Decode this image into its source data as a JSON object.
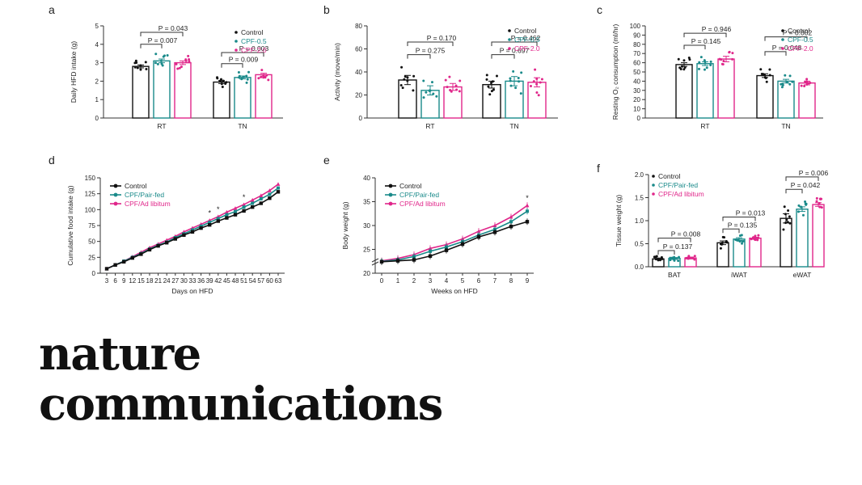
{
  "colors": {
    "control": "#111111",
    "teal": "#1a8a8a",
    "pink": "#e0268a",
    "axis": "#333333"
  },
  "brand": {
    "line1": "nature",
    "line2": "communications"
  },
  "chart_data": [
    {
      "panel": "a",
      "type": "bar",
      "ylabel": "Daily HFD intake (g)",
      "ylim": [
        0,
        5
      ],
      "yticks": [
        "0",
        "1",
        "2",
        "3",
        "4",
        "5"
      ],
      "groups": [
        "RT",
        "TN"
      ],
      "legend": [
        {
          "name": "Control",
          "color": "#111111"
        },
        {
          "name": "CPF-0.5",
          "color": "#1a8a8a"
        },
        {
          "name": "CPF-2.0",
          "color": "#e0268a"
        }
      ],
      "series": [
        {
          "name": "Control",
          "values": [
            2.8,
            1.95
          ],
          "err": [
            0.08,
            0.08
          ]
        },
        {
          "name": "CPF-0.5",
          "values": [
            3.1,
            2.2
          ],
          "err": [
            0.1,
            0.08
          ]
        },
        {
          "name": "CPF-2.0",
          "values": [
            3.0,
            2.35
          ],
          "err": [
            0.1,
            0.08
          ]
        }
      ],
      "annotations": [
        {
          "text": "P = 0.043",
          "group": 0,
          "from": 0,
          "to": 2,
          "y": 4.65
        },
        {
          "text": "P = 0.007",
          "group": 0,
          "from": 0,
          "to": 1,
          "y": 4.0
        },
        {
          "text": "P = 0.003",
          "group": 1,
          "from": 0,
          "to": 2,
          "y": 3.55
        },
        {
          "text": "P = 0.009",
          "group": 1,
          "from": 0,
          "to": 1,
          "y": 2.95
        }
      ]
    },
    {
      "panel": "b",
      "type": "bar",
      "ylabel": "Activity (move/min)",
      "ylim": [
        0,
        80
      ],
      "yticks": [
        "0",
        "20",
        "40",
        "60",
        "80"
      ],
      "groups": [
        "RT",
        "TN"
      ],
      "legend": [
        {
          "name": "Control",
          "color": "#111111"
        },
        {
          "name": "CPF-0.5",
          "color": "#1a8a8a"
        },
        {
          "name": "CPF-2.0",
          "color": "#e0268a"
        }
      ],
      "series": [
        {
          "name": "Control",
          "values": [
            33,
            29
          ],
          "err": [
            4,
            3
          ]
        },
        {
          "name": "CPF-0.5",
          "values": [
            24,
            32
          ],
          "err": [
            4,
            4
          ]
        },
        {
          "name": "CPF-2.0",
          "values": [
            27,
            31
          ],
          "err": [
            3,
            4
          ]
        }
      ],
      "annotations": [
        {
          "text": "P = 0.170",
          "group": 0,
          "from": 0,
          "to": 2,
          "y": 66
        },
        {
          "text": "P = 0.275",
          "group": 0,
          "from": 0,
          "to": 1,
          "y": 55
        },
        {
          "text": "P = 0.462",
          "group": 1,
          "from": 0,
          "to": 2,
          "y": 66
        },
        {
          "text": "P = 0.697",
          "group": 1,
          "from": 0,
          "to": 1,
          "y": 55
        }
      ]
    },
    {
      "panel": "c",
      "type": "bar",
      "ylabel": "Resting O₂ consumption (ml/hr)",
      "ylim": [
        0,
        100
      ],
      "yticks": [
        "0",
        "10",
        "20",
        "30",
        "40",
        "50",
        "60",
        "70",
        "80",
        "90",
        "100"
      ],
      "groups": [
        "RT",
        "TN"
      ],
      "legend": [
        {
          "name": "Control",
          "color": "#111111"
        },
        {
          "name": "CPF-0.5",
          "color": "#1a8a8a"
        },
        {
          "name": "CPF-2.0",
          "color": "#e0268a"
        }
      ],
      "series": [
        {
          "name": "Control",
          "values": [
            58,
            46
          ],
          "err": [
            2,
            2
          ]
        },
        {
          "name": "CPF-0.5",
          "values": [
            59,
            40
          ],
          "err": [
            2,
            2
          ]
        },
        {
          "name": "CPF-2.0",
          "values": [
            64,
            38
          ],
          "err": [
            3,
            2
          ]
        }
      ],
      "annotations": [
        {
          "text": "P = 0.946",
          "group": 0,
          "from": 0,
          "to": 2,
          "y": 92
        },
        {
          "text": "P = 0.145",
          "group": 0,
          "from": 0,
          "to": 1,
          "y": 79
        },
        {
          "text": "P = 0.002",
          "group": 1,
          "from": 0,
          "to": 2,
          "y": 88
        },
        {
          "text": "P = 0.048",
          "group": 1,
          "from": 0,
          "to": 1,
          "y": 72
        }
      ]
    },
    {
      "panel": "d",
      "type": "line",
      "ylabel": "Cumulative food intake (g)",
      "xlabel": "Days on HFD",
      "ylim": [
        0,
        150
      ],
      "yticks": [
        "0",
        "25",
        "50",
        "75",
        "100",
        "125",
        "150"
      ],
      "x": [
        3,
        6,
        9,
        12,
        15,
        18,
        21,
        24,
        27,
        30,
        33,
        36,
        39,
        42,
        45,
        48,
        51,
        54,
        57,
        60,
        63
      ],
      "legend": [
        {
          "name": "Control",
          "color": "#111111"
        },
        {
          "name": "CPF/Pair-fed",
          "color": "#1a8a8a"
        },
        {
          "name": "CPF/Ad libitum",
          "color": "#e0268a"
        }
      ],
      "series": [
        {
          "name": "Control",
          "values": [
            7,
            13,
            18,
            24,
            30,
            37,
            43,
            48,
            54,
            60,
            65,
            71,
            76,
            82,
            87,
            92,
            98,
            104,
            110,
            118,
            128
          ]
        },
        {
          "name": "CPF/Pair-fed",
          "values": [
            7,
            13,
            19,
            25,
            31,
            38,
            44,
            49,
            56,
            62,
            68,
            74,
            80,
            86,
            92,
            97,
            104,
            110,
            117,
            124,
            134
          ]
        },
        {
          "name": "CPF/Ad libitum",
          "values": [
            7,
            13,
            19,
            26,
            33,
            40,
            46,
            52,
            58,
            65,
            71,
            77,
            83,
            89,
            96,
            102,
            108,
            115,
            122,
            130,
            140
          ]
        }
      ],
      "stars": [
        39,
        42,
        51
      ]
    },
    {
      "panel": "e",
      "type": "line",
      "ylabel": "Body weight (g)",
      "xlabel": "Weeks on HFD",
      "ylim": [
        20,
        40
      ],
      "yticks": [
        "20",
        "25",
        "30",
        "35",
        "40"
      ],
      "axis_break": true,
      "x": [
        0,
        1,
        2,
        3,
        4,
        5,
        6,
        7,
        8,
        9
      ],
      "legend": [
        {
          "name": "Control",
          "color": "#111111"
        },
        {
          "name": "CPF/Pair-fed",
          "color": "#1a8a8a"
        },
        {
          "name": "CPF/Ad libitum",
          "color": "#e0268a"
        }
      ],
      "series": [
        {
          "name": "Control",
          "values": [
            22.4,
            22.6,
            22.8,
            23.6,
            24.8,
            26.1,
            27.6,
            28.6,
            29.8,
            30.8
          ]
        },
        {
          "name": "CPF/Pair-fed",
          "values": [
            22.5,
            22.8,
            23.5,
            24.6,
            25.5,
            26.6,
            28.0,
            29.2,
            30.8,
            33.0
          ]
        },
        {
          "name": "CPF/Ad libitum",
          "values": [
            22.6,
            23.1,
            23.9,
            25.2,
            26.0,
            27.2,
            28.8,
            30.0,
            31.8,
            34.2
          ]
        }
      ],
      "stars": [
        9
      ]
    },
    {
      "panel": "f",
      "type": "bar",
      "ylabel": "Tissue weight (g)",
      "ylim": [
        0,
        2.0
      ],
      "yticks": [
        "0.0",
        "0.5",
        "1.0",
        "1.5",
        "2.0"
      ],
      "groups": [
        "BAT",
        "iWAT",
        "eWAT"
      ],
      "legend": [
        {
          "name": "Control",
          "color": "#111111"
        },
        {
          "name": "CPF/Pair-fed",
          "color": "#1a8a8a"
        },
        {
          "name": "CPF/Ad libitum",
          "color": "#e0268a"
        }
      ],
      "series": [
        {
          "name": "Control",
          "values": [
            0.17,
            0.52,
            1.05
          ],
          "err": [
            0.02,
            0.04,
            0.1
          ]
        },
        {
          "name": "CPF/Pair-fed",
          "values": [
            0.18,
            0.6,
            1.25
          ],
          "err": [
            0.02,
            0.03,
            0.05
          ]
        },
        {
          "name": "CPF/Ad libitum",
          "values": [
            0.19,
            0.62,
            1.35
          ],
          "err": [
            0.02,
            0.02,
            0.04
          ]
        }
      ],
      "annotations": [
        {
          "text": "P = 0.008",
          "group": 0,
          "from": 0,
          "to": 2,
          "y": 0.62
        },
        {
          "text": "P = 0.137",
          "group": 0,
          "from": 0,
          "to": 1,
          "y": 0.35
        },
        {
          "text": "P = 0.013",
          "group": 1,
          "from": 0,
          "to": 2,
          "y": 1.08
        },
        {
          "text": "P = 0.135",
          "group": 1,
          "from": 0,
          "to": 1,
          "y": 0.82
        },
        {
          "text": "P = 0.006",
          "group": 2,
          "from": 0,
          "to": 2,
          "y": 1.95
        },
        {
          "text": "P = 0.042",
          "group": 2,
          "from": 0,
          "to": 1,
          "y": 1.68
        }
      ]
    }
  ]
}
